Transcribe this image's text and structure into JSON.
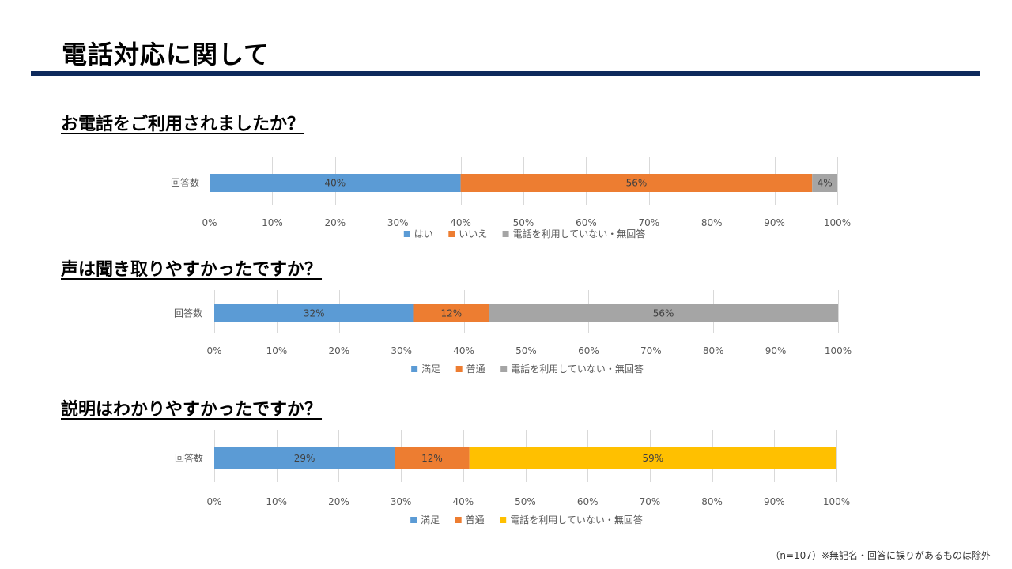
{
  "page": {
    "title": "電話対応に関して",
    "footnote": "（n=107）※無記名・回答に誤りがあるものは除外"
  },
  "colors": {
    "title_rule": "#0e2a5c",
    "blue": "#5b9bd5",
    "orange": "#ed7d31",
    "gray": "#a5a5a5",
    "yellow": "#ffc000",
    "gridline": "#d9d9d9",
    "text": "#595959"
  },
  "chart_data": [
    {
      "type": "bar",
      "orientation": "horizontal",
      "stacked": true,
      "percent_stacked": true,
      "title": "お電話をご利用されましたか？",
      "categories": [
        "回答数"
      ],
      "series": [
        {
          "name": "はい",
          "values": [
            40
          ],
          "color": "#5b9bd5",
          "label": "40%"
        },
        {
          "name": "いいえ",
          "values": [
            56
          ],
          "color": "#ed7d31",
          "label": "56%"
        },
        {
          "name": "電話を利用していない・無回答",
          "values": [
            4
          ],
          "color": "#a5a5a5",
          "label": "4%"
        }
      ],
      "x_ticks": [
        "0%",
        "10%",
        "20%",
        "30%",
        "40%",
        "50%",
        "60%",
        "70%",
        "80%",
        "90%",
        "100%"
      ],
      "xlim": [
        0,
        100
      ],
      "grid": true,
      "legend": "bottom"
    },
    {
      "type": "bar",
      "orientation": "horizontal",
      "stacked": true,
      "percent_stacked": true,
      "title": "声は聞き取りやすかったですか？",
      "categories": [
        "回答数"
      ],
      "series": [
        {
          "name": "満足",
          "values": [
            32
          ],
          "color": "#5b9bd5",
          "label": "32%"
        },
        {
          "name": "普通",
          "values": [
            12
          ],
          "color": "#ed7d31",
          "label": "12%"
        },
        {
          "name": "電話を利用していない・無回答",
          "values": [
            56
          ],
          "color": "#a5a5a5",
          "label": "56%"
        }
      ],
      "x_ticks": [
        "0%",
        "10%",
        "20%",
        "30%",
        "40%",
        "50%",
        "60%",
        "70%",
        "80%",
        "90%",
        "100%"
      ],
      "xlim": [
        0,
        100
      ],
      "grid": true,
      "legend": "bottom"
    },
    {
      "type": "bar",
      "orientation": "horizontal",
      "stacked": true,
      "percent_stacked": true,
      "title": "説明はわかりやすかったですか？",
      "categories": [
        "回答数"
      ],
      "series": [
        {
          "name": "満足",
          "values": [
            29
          ],
          "color": "#5b9bd5",
          "label": "29%"
        },
        {
          "name": "普通",
          "values": [
            12
          ],
          "color": "#ed7d31",
          "label": "12%"
        },
        {
          "name": "電話を利用していない・無回答",
          "values": [
            59
          ],
          "color": "#ffc000",
          "label": "59%"
        }
      ],
      "x_ticks": [
        "0%",
        "10%",
        "20%",
        "30%",
        "40%",
        "50%",
        "60%",
        "70%",
        "80%",
        "90%",
        "100%"
      ],
      "xlim": [
        0,
        100
      ],
      "grid": true,
      "legend": "bottom"
    }
  ]
}
